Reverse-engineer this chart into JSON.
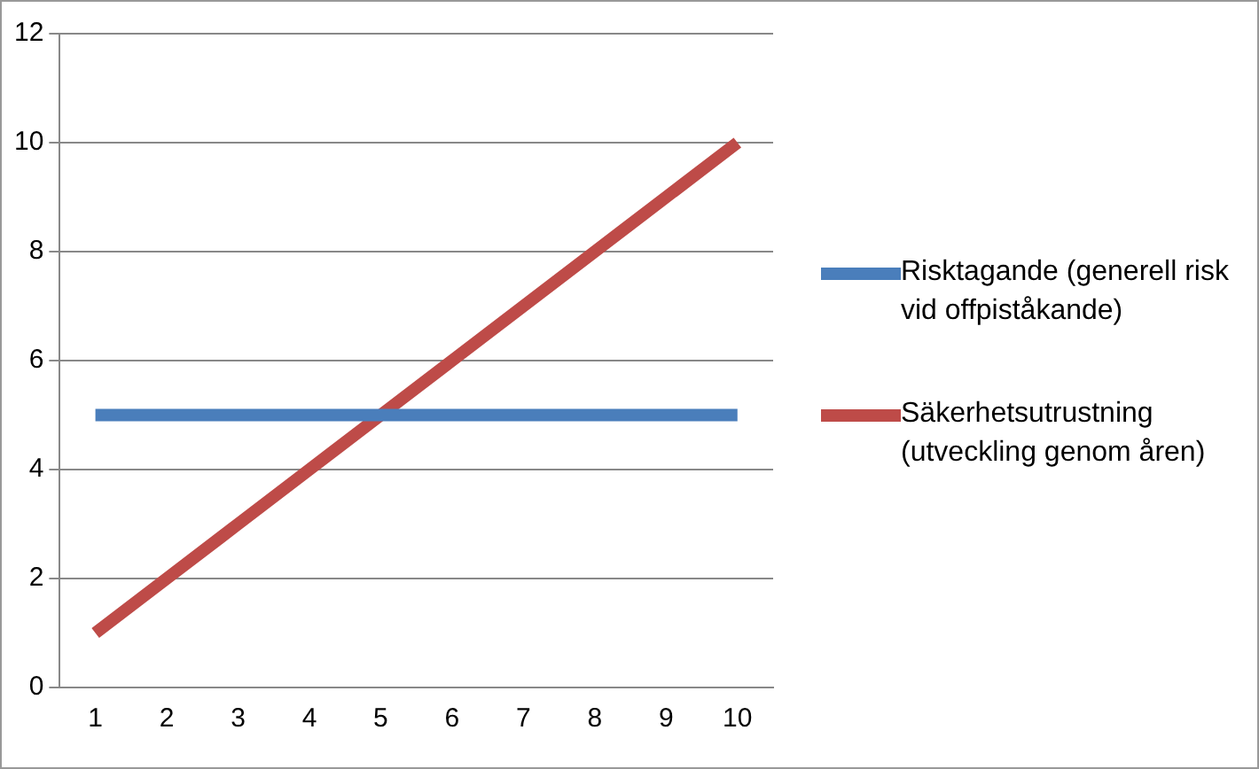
{
  "chart_data": {
    "type": "line",
    "categories": [
      "1",
      "2",
      "3",
      "4",
      "5",
      "6",
      "7",
      "8",
      "9",
      "10"
    ],
    "series": [
      {
        "name": "Risktagande (generell risk vid offpiståkande)",
        "color": "#4a7ebb",
        "values": [
          5,
          5,
          5,
          5,
          5,
          5,
          5,
          5,
          5,
          5
        ]
      },
      {
        "name": "Säkerhetsutrustning (utveckling genom åren)",
        "color": "#be4b48",
        "values": [
          1,
          2,
          3,
          4,
          5,
          6,
          7,
          8,
          9,
          10
        ]
      }
    ],
    "ylim": [
      0,
      12
    ],
    "yticks": [
      0,
      2,
      4,
      6,
      8,
      10,
      12
    ],
    "grid": "y",
    "legend": "right",
    "marker": "none",
    "line_style": "solid"
  }
}
